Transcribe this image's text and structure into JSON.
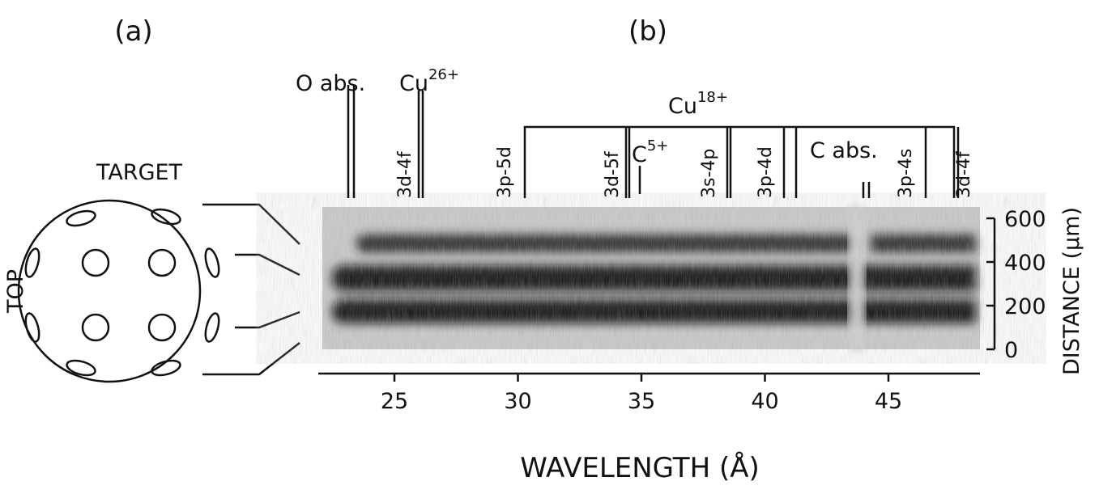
{
  "panel_a": {
    "label": "(a)",
    "target_label": "TARGET",
    "top_label": "TOP"
  },
  "panel_b": {
    "label": "(b)",
    "line_labels": {
      "o_abs": "O abs.",
      "cu26": "Cu",
      "cu26_charge": "26+",
      "cu18": "Cu",
      "cu18_charge": "18+",
      "c5": "C",
      "c5_charge": "5+",
      "c_abs": "C abs.",
      "transitions": [
        "3d-4f",
        "3p-5d",
        "3d-5f",
        "3s-4p",
        "3p-4d",
        "3p-4s",
        "3d-4f"
      ]
    },
    "x_axis": {
      "label": "WAVELENGTH (Å)",
      "ticks": [
        25,
        30,
        35,
        40,
        45
      ]
    },
    "y_axis": {
      "label": "DISTANCE (μm)",
      "ticks": [
        0,
        200,
        400,
        600
      ]
    }
  }
}
